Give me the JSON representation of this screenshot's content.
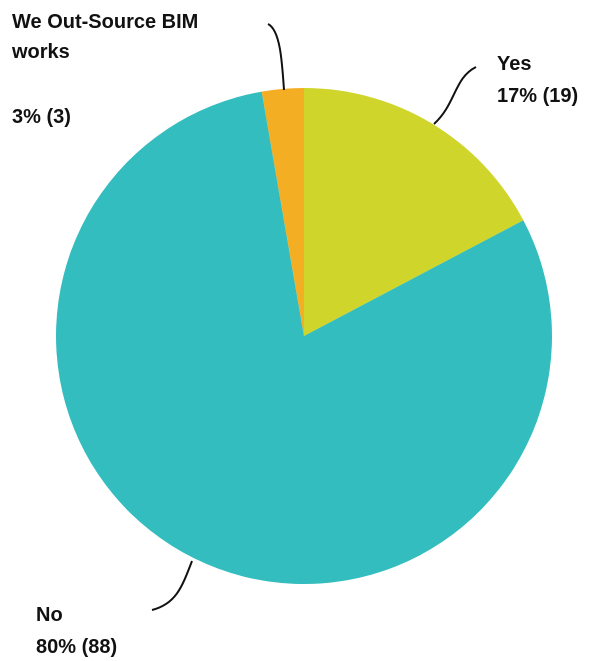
{
  "chart_data": {
    "type": "pie",
    "categories": [
      "Yes",
      "No",
      "We Out-Source BIM works"
    ],
    "values": [
      19,
      88,
      3
    ],
    "percent_labels": [
      "17% (19)",
      "80% (88)",
      "3% (3)"
    ],
    "label_lines": [
      [
        "Yes"
      ],
      [
        "No"
      ],
      [
        "We Out-Source BIM",
        "works"
      ]
    ],
    "colors": [
      "#CFD52B",
      "#34BDBF",
      "#F4AE23"
    ],
    "start": "12 o'clock",
    "direction": "clockwise",
    "legend": "none"
  }
}
